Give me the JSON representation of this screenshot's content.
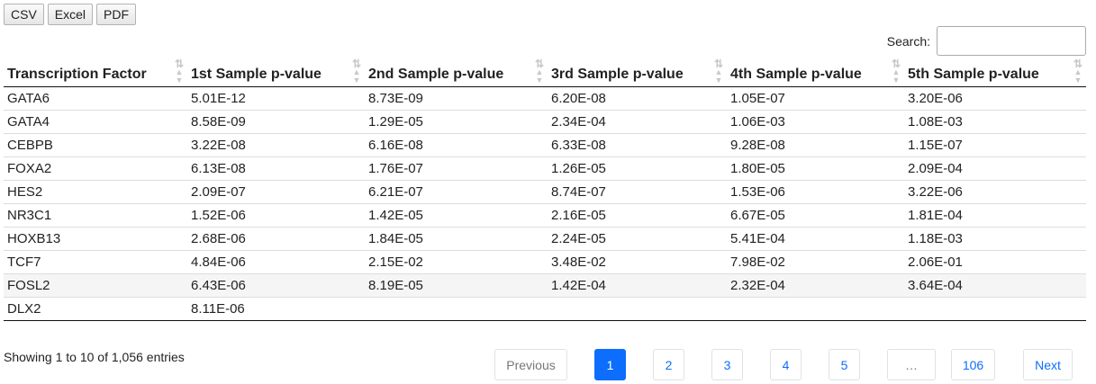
{
  "export_buttons": [
    "CSV",
    "Excel",
    "PDF"
  ],
  "search": {
    "label": "Search:",
    "value": ""
  },
  "columns": [
    "Transcription Factor",
    "1st Sample p-value",
    "2nd Sample p-value",
    "3rd Sample p-value",
    "4th Sample p-value",
    "5th Sample p-value"
  ],
  "rows": [
    [
      "GATA6",
      "5.01E-12",
      "8.73E-09",
      "6.20E-08",
      "1.05E-07",
      "3.20E-06"
    ],
    [
      "GATA4",
      "8.58E-09",
      "1.29E-05",
      "2.34E-04",
      "1.06E-03",
      "1.08E-03"
    ],
    [
      "CEBPB",
      "3.22E-08",
      "6.16E-08",
      "6.33E-08",
      "9.28E-08",
      "1.15E-07"
    ],
    [
      "FOXA2",
      "6.13E-08",
      "1.76E-07",
      "1.26E-05",
      "1.80E-05",
      "2.09E-04"
    ],
    [
      "HES2",
      "2.09E-07",
      "6.21E-07",
      "8.74E-07",
      "1.53E-06",
      "3.22E-06"
    ],
    [
      "NR3C1",
      "1.52E-06",
      "1.42E-05",
      "2.16E-05",
      "6.67E-05",
      "1.81E-04"
    ],
    [
      "HOXB13",
      "2.68E-06",
      "1.84E-05",
      "2.24E-05",
      "5.41E-04",
      "1.18E-03"
    ],
    [
      "TCF7",
      "4.84E-06",
      "2.15E-02",
      "3.48E-02",
      "7.98E-02",
      "2.06E-01"
    ],
    [
      "FOSL2",
      "6.43E-06",
      "8.19E-05",
      "1.42E-04",
      "2.32E-04",
      "3.64E-04"
    ],
    [
      "DLX2",
      "8.11E-06",
      "",
      "",
      "",
      ""
    ]
  ],
  "highlighted_row": 8,
  "info_text": "Showing 1 to 10 of 1,056 entries",
  "pagination": {
    "previous": "Previous",
    "pages": [
      "1",
      "2",
      "3",
      "4",
      "5",
      "…",
      "106"
    ],
    "active_page": "1",
    "next": "Next"
  },
  "colors": {
    "accent": "#0d6efd",
    "sort_icon": "#c8c8c8"
  }
}
